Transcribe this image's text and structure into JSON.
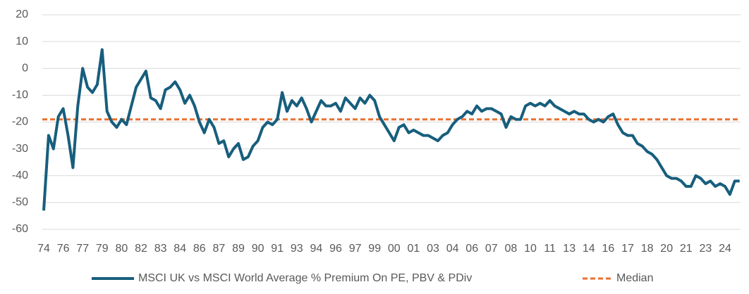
{
  "chart_data": {
    "type": "line",
    "categories": [
      "74",
      null,
      null,
      null,
      "76",
      null,
      null,
      null,
      "77",
      null,
      null,
      null,
      "79",
      null,
      null,
      null,
      "80",
      null,
      null,
      null,
      "82",
      null,
      null,
      null,
      "83",
      null,
      null,
      null,
      "84",
      null,
      null,
      null,
      "86",
      null,
      null,
      null,
      "87",
      null,
      null,
      null,
      "89",
      null,
      null,
      null,
      "90",
      null,
      null,
      null,
      "91",
      null,
      null,
      null,
      "93",
      null,
      null,
      null,
      "94",
      null,
      null,
      null,
      "96",
      null,
      null,
      null,
      "97",
      null,
      null,
      null,
      "99",
      null,
      null,
      null,
      "00",
      null,
      null,
      null,
      "01",
      null,
      null,
      null,
      "03",
      null,
      null,
      null,
      "04",
      null,
      null,
      null,
      "06",
      null,
      null,
      null,
      "07",
      null,
      null,
      null,
      "08",
      null,
      null,
      null,
      "10",
      null,
      null,
      null,
      "11",
      null,
      null,
      null,
      "13",
      null,
      null,
      null,
      "14",
      null,
      null,
      null,
      "16",
      null,
      null,
      null,
      "17",
      null,
      null,
      null,
      "18",
      null,
      null,
      null,
      "20",
      null,
      null,
      null,
      "21",
      null,
      null,
      null,
      "23",
      null,
      null,
      null,
      "24",
      null,
      null,
      null
    ],
    "series": [
      {
        "name": "MSCI UK vs MSCI World Average % Premium On PE, PBV & PDiv",
        "color": "#175e7d",
        "values": [
          -53,
          -25,
          -30,
          -18,
          -15,
          -25,
          -37,
          -14,
          0,
          -7,
          -9,
          -6,
          7,
          -16,
          -20,
          -22,
          -19,
          -21,
          -14,
          -7,
          -4,
          -1,
          -11,
          -12,
          -15,
          -8,
          -7,
          -5,
          -8,
          -13,
          -10,
          -14,
          -20,
          -24,
          -19,
          -22,
          -28,
          -27,
          -33,
          -30,
          -28,
          -34,
          -33,
          -29,
          -27,
          -22,
          -20,
          -21,
          -19,
          -9,
          -16,
          -12,
          -14,
          -11,
          -15,
          -20,
          -16,
          -12,
          -14,
          -14,
          -13,
          -16,
          -11,
          -13,
          -15,
          -11,
          -13,
          -10,
          -12,
          -18,
          -21,
          -24,
          -27,
          -22,
          -21,
          -24,
          -23,
          -24,
          -25,
          -25,
          -26,
          -27,
          -25,
          -24,
          -21,
          -19,
          -18,
          -16,
          -17,
          -14,
          -16,
          -15,
          -15,
          -16,
          -17,
          -22,
          -18,
          -19,
          -19,
          -14,
          -13,
          -14,
          -13,
          -14,
          -12,
          -14,
          -15,
          -16,
          -17,
          -16,
          -17,
          -17,
          -19,
          -20,
          -19,
          -20,
          -18,
          -17,
          -21,
          -24,
          -25,
          -25,
          -28,
          -29,
          -31,
          -32,
          -34,
          -37,
          -40,
          -41,
          -41,
          -42,
          -44,
          -44,
          -40,
          -41,
          -43,
          -42,
          -44,
          -43,
          -44,
          -47,
          -42,
          -42
        ]
      }
    ],
    "median": {
      "name": "Median",
      "value": -19,
      "color": "#e97132"
    },
    "ylim": [
      -60,
      20
    ],
    "yticks": [
      -60,
      -50,
      -40,
      -30,
      -20,
      -10,
      0,
      10,
      20
    ],
    "grid": true
  }
}
